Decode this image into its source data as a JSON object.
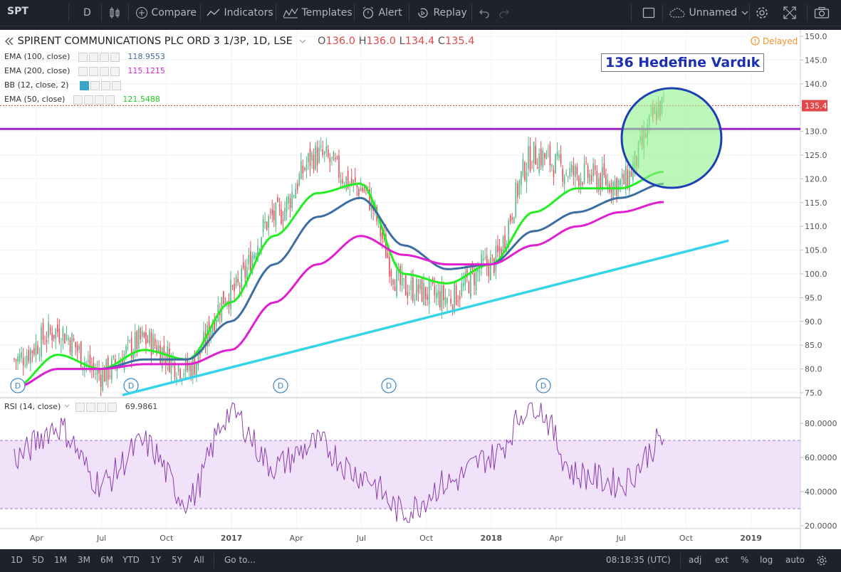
{
  "toolbar": {
    "symbol": "SPT",
    "interval": "D",
    "compare": "Compare",
    "indicators": "Indicators",
    "templates": "Templates",
    "alert": "Alert",
    "replay": "Replay",
    "layout_name": "Unnamed"
  },
  "legend": {
    "title": "SPIRENT COMMUNICATIONS PLC ORD 3 1/3P, 1D, LSE",
    "o_label": "O",
    "o": "136.0",
    "h_label": "H",
    "h": "136.0",
    "l_label": "L",
    "l": "134.4",
    "c_label": "C",
    "c": "135.4",
    "delayed": "Delayed",
    "studies": [
      {
        "label": "EMA (100, close)",
        "value": "118.9553",
        "color": "#3d6ea0"
      },
      {
        "label": "EMA (200, close)",
        "value": "115.1215",
        "color": "#e020d0"
      },
      {
        "label": "BB (12, close, 2)",
        "value": "",
        "color": "#37a6c8"
      },
      {
        "label": "EMA (50, close)",
        "value": "121.5488",
        "color": "#22cc22"
      }
    ],
    "rsi_label": "RSI (14, close)",
    "rsi_value": "69.9861"
  },
  "annotation": "136 Hedefine Vardık",
  "last_price_label": "135.4",
  "chart_data": {
    "type": "line",
    "title": "SPIRENT COMMUNICATIONS PLC ORD 3 1/3P, 1D, LSE",
    "x": [
      "2016-03",
      "2016-05",
      "2016-07",
      "2016-09",
      "2016-11",
      "2017-01",
      "2017-03",
      "2017-05",
      "2017-07",
      "2017-09",
      "2017-11",
      "2018-01",
      "2018-03",
      "2018-05",
      "2018-07",
      "2018-09"
    ],
    "series": [
      {
        "name": "Close",
        "values": [
          82,
          88,
          79,
          86,
          80,
          96,
          112,
          125,
          118,
          97,
          95,
          102,
          125,
          121,
          119,
          135.4
        ]
      },
      {
        "name": "EMA (50, close)",
        "values": [
          76,
          83,
          80,
          84,
          82,
          94,
          108,
          117,
          119,
          100,
          98,
          102,
          113,
          118,
          118,
          121.5
        ]
      },
      {
        "name": "EMA (100, close)",
        "values": [
          76,
          80,
          80,
          82,
          82,
          90,
          102,
          112,
          116,
          106,
          101,
          102,
          109,
          113,
          116,
          118.96
        ]
      },
      {
        "name": "EMA (200, close)",
        "values": [
          76,
          80,
          80,
          81,
          81,
          84,
          94,
          102,
          108,
          104,
          102,
          102,
          106,
          110,
          113,
          115.12
        ]
      }
    ],
    "resistance": 130.5,
    "support_trendline": [
      [
        "2016-08",
        74.5
      ],
      [
        "2018-12",
        107
      ]
    ],
    "rsi": {
      "name": "RSI (14, close)",
      "values": [
        60,
        78,
        45,
        68,
        35,
        86,
        55,
        68,
        50,
        28,
        45,
        60,
        92,
        50,
        45,
        70
      ],
      "upper": 70,
      "lower": 30,
      "ticks": [
        "80.0000",
        "60.0000",
        "40.0000",
        "20.0000"
      ]
    },
    "y_ticks": [
      "150.0",
      "145.0",
      "140.0",
      "135.0",
      "130.0",
      "125.0",
      "120.0",
      "115.0",
      "110.0",
      "105.0",
      "100.0",
      "95.0",
      "90.0",
      "85.0",
      "80.0",
      "75.0"
    ],
    "x_ticks": [
      "Apr",
      "Jul",
      "Oct",
      "2017",
      "Apr",
      "Jul",
      "Oct",
      "2018",
      "Apr",
      "Jul",
      "Oct",
      "2019"
    ],
    "dividend_marker": "D",
    "ylim": [
      75,
      150
    ]
  },
  "bottom": {
    "ranges": [
      "1D",
      "5D",
      "1M",
      "3M",
      "6M",
      "YTD",
      "1Y",
      "5Y",
      "All"
    ],
    "goto": "Go to...",
    "time": "08:18:35 (UTC)",
    "adj": "adj",
    "ext": "ext",
    "pct": "%",
    "log": "log",
    "auto": "auto"
  }
}
